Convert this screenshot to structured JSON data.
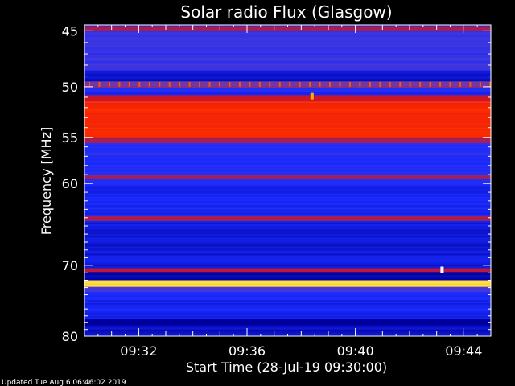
{
  "chart_data": {
    "type": "heatmap",
    "title": "Solar radio Flux (Glasgow)",
    "xlabel": "Start Time (28-Jul-19 09:30:00)",
    "ylabel": "Frequency [MHz]",
    "x_tick_labels": [
      "09:32",
      "09:36",
      "09:40",
      "09:44"
    ],
    "x_tick_minutes": [
      2,
      6,
      10,
      14
    ],
    "x_range_minutes": [
      0,
      15
    ],
    "y_tick_labels": [
      "45",
      "50",
      "55",
      "60",
      "70",
      "80"
    ],
    "y_ticks": [
      45,
      50,
      55,
      60,
      70,
      80
    ],
    "y_range": [
      44.5,
      80
    ],
    "y_scale": "log",
    "y_inverted": true,
    "footer": "Updated Tue Aug  6 06:46:02 2019",
    "colormap": [
      "#000000",
      "#0000a0",
      "#1a2bff",
      "#6040c0",
      "#a0205a",
      "#e01010",
      "#ff3000",
      "#ffd000",
      "#ffffff"
    ],
    "base_intensity": 0.22,
    "bands": [
      {
        "f0": 44.6,
        "f1": 45.0,
        "intensity": 0.52
      },
      {
        "f0": 45.0,
        "f1": 48.5,
        "intensity": 0.3
      },
      {
        "f0": 48.5,
        "f1": 49.5,
        "intensity": 0.18
      },
      {
        "f0": 49.5,
        "f1": 50.1,
        "intensity": 0.42
      },
      {
        "f0": 50.1,
        "f1": 50.8,
        "intensity": 0.25
      },
      {
        "f0": 50.8,
        "f1": 51.4,
        "intensity": 0.58
      },
      {
        "f0": 51.4,
        "f1": 55.0,
        "intensity": 0.72
      },
      {
        "f0": 55.0,
        "f1": 55.6,
        "intensity": 0.5
      },
      {
        "f0": 55.6,
        "f1": 59.0,
        "intensity": 0.27
      },
      {
        "f0": 59.0,
        "f1": 59.5,
        "intensity": 0.48
      },
      {
        "f0": 59.5,
        "f1": 63.8,
        "intensity": 0.24
      },
      {
        "f0": 63.8,
        "f1": 64.4,
        "intensity": 0.5
      },
      {
        "f0": 64.4,
        "f1": 70.4,
        "intensity": 0.2
      },
      {
        "f0": 70.4,
        "f1": 70.9,
        "intensity": 0.56
      },
      {
        "f0": 70.9,
        "f1": 72.0,
        "intensity": 0.14
      },
      {
        "f0": 72.0,
        "f1": 72.9,
        "intensity": 0.9
      },
      {
        "f0": 72.9,
        "f1": 73.6,
        "intensity": 0.34
      },
      {
        "f0": 73.6,
        "f1": 77.5,
        "intensity": 0.23
      },
      {
        "f0": 77.5,
        "f1": 78.5,
        "intensity": 0.12
      },
      {
        "f0": 78.5,
        "f1": 80.0,
        "intensity": 0.18
      }
    ],
    "bursts": [
      {
        "minute": 13.2,
        "freq": 70.6,
        "intensity": 1.0
      },
      {
        "minute": 8.4,
        "freq": 50.9,
        "intensity": 0.85
      }
    ]
  }
}
